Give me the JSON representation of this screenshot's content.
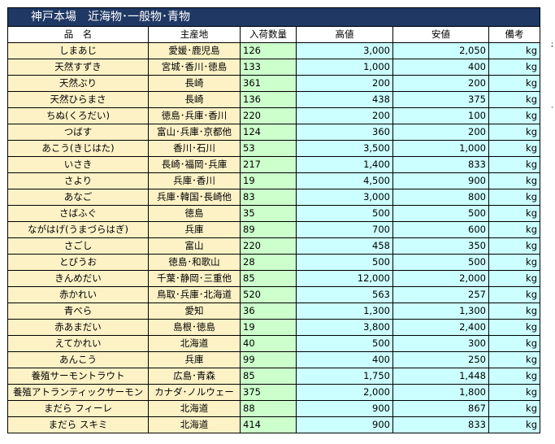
{
  "title": "神戸本場　近海物･一般物･青物",
  "headers": {
    "name": "品　名",
    "origin": "主産地",
    "qty": "入荷数量",
    "high": "高値",
    "low": "安値",
    "note": "備考"
  },
  "rows": [
    {
      "name": "しまあじ",
      "origin": "愛媛･鹿児島",
      "qty": "126",
      "high": "3,000",
      "low": "2,050",
      "unit": "kg"
    },
    {
      "name": "天然すずき",
      "origin": "宮城･香川･徳島",
      "qty": "133",
      "high": "1,000",
      "low": "400",
      "unit": "kg"
    },
    {
      "name": "天然ぶり",
      "origin": "長崎",
      "qty": "361",
      "high": "200",
      "low": "200",
      "unit": "kg"
    },
    {
      "name": "天然ひらまさ",
      "origin": "長崎",
      "qty": "136",
      "high": "438",
      "low": "375",
      "unit": "kg"
    },
    {
      "name": "ちぬ(くろだい)",
      "origin": "徳島･兵庫･香川",
      "qty": "220",
      "high": "200",
      "low": "100",
      "unit": "kg"
    },
    {
      "name": "つばす",
      "origin": "富山･兵庫･京都他",
      "qty": "124",
      "high": "360",
      "low": "200",
      "unit": "kg"
    },
    {
      "name": "あこう(きじはた)",
      "origin": "香川･石川",
      "qty": "53",
      "high": "3,500",
      "low": "1,000",
      "unit": "kg"
    },
    {
      "name": "いさき",
      "origin": "長崎･福岡･兵庫",
      "qty": "217",
      "high": "1,400",
      "low": "833",
      "unit": "kg"
    },
    {
      "name": "さより",
      "origin": "兵庫･香川",
      "qty": "19",
      "high": "4,500",
      "low": "900",
      "unit": "kg"
    },
    {
      "name": "あなご",
      "origin": "兵庫･韓国･長崎他",
      "qty": "83",
      "high": "3,000",
      "low": "800",
      "unit": "kg"
    },
    {
      "name": "さばふぐ",
      "origin": "徳島",
      "qty": "35",
      "high": "500",
      "low": "500",
      "unit": "kg"
    },
    {
      "name": "ながはげ(うまづらはぎ)",
      "origin": "兵庫",
      "qty": "89",
      "high": "700",
      "low": "600",
      "unit": "kg"
    },
    {
      "name": "さごし",
      "origin": "富山",
      "qty": "220",
      "high": "458",
      "low": "350",
      "unit": "kg"
    },
    {
      "name": "とびうお",
      "origin": "徳島･和歌山",
      "qty": "28",
      "high": "500",
      "low": "500",
      "unit": "kg"
    },
    {
      "name": "きんめだい",
      "origin": "千葉･静岡･三重他",
      "qty": "85",
      "high": "12,000",
      "low": "2,000",
      "unit": "kg"
    },
    {
      "name": "赤かれい",
      "origin": "鳥取･兵庫･北海道",
      "qty": "520",
      "high": "563",
      "low": "257",
      "unit": "kg"
    },
    {
      "name": "青べら",
      "origin": "愛知",
      "qty": "36",
      "high": "1,300",
      "low": "1,300",
      "unit": "kg"
    },
    {
      "name": "赤あまだい",
      "origin": "島根･徳島",
      "qty": "19",
      "high": "3,800",
      "low": "2,400",
      "unit": "kg"
    },
    {
      "name": "えてかれい",
      "origin": "北海道",
      "qty": "40",
      "high": "500",
      "low": "300",
      "unit": "kg"
    },
    {
      "name": "あんこう",
      "origin": "兵庫",
      "qty": "99",
      "high": "400",
      "low": "250",
      "unit": "kg"
    },
    {
      "name": "養殖サーモントラウト",
      "origin": "広島･青森",
      "qty": "85",
      "high": "1,750",
      "low": "1,448",
      "unit": "kg"
    },
    {
      "name": "養殖アトランティックサーモン",
      "origin": "カナダ･ノルウェー",
      "qty": "375",
      "high": "2,000",
      "low": "1,800",
      "unit": "kg"
    },
    {
      "name": "まだら フィーレ",
      "origin": "北海道",
      "qty": "88",
      "high": "900",
      "low": "867",
      "unit": "kg"
    },
    {
      "name": "まだら スキミ",
      "origin": "北海道",
      "qty": "414",
      "high": "900",
      "low": "833",
      "unit": "kg"
    }
  ],
  "colors": {
    "title_bg": "#1f3864",
    "name_bg": "#fdf2c6",
    "qty_bg": "#ccffcc",
    "price_bg": "#ccffff"
  }
}
